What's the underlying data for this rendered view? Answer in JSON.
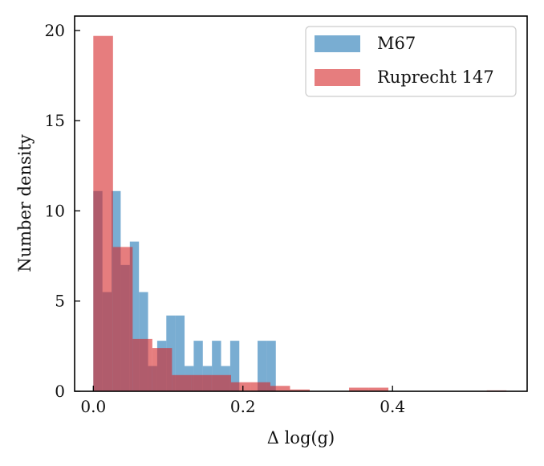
{
  "chart_data": {
    "type": "bar",
    "title": "",
    "xlabel": "Δ log(g)",
    "ylabel": "Number density",
    "xlim": [
      -0.025,
      0.58
    ],
    "ylim": [
      0,
      20.8
    ],
    "xticks": [
      0.0,
      0.2,
      0.4
    ],
    "xtick_labels": [
      "0.0",
      "0.2",
      "0.4"
    ],
    "yticks": [
      0,
      5,
      10,
      15,
      20
    ],
    "ytick_labels": [
      "0",
      "5",
      "10",
      "15",
      "20"
    ],
    "grid": false,
    "legend_position": "top-right",
    "series": [
      {
        "name": "M67",
        "color": "#1f77b4",
        "bin_width": 0.0122,
        "bins_left": [
          0.0,
          0.0122,
          0.0244,
          0.0366,
          0.0488,
          0.061,
          0.0732,
          0.0854,
          0.0976,
          0.1098,
          0.122,
          0.1342,
          0.1464,
          0.1586,
          0.1708,
          0.183,
          0.1952,
          0.2074,
          0.2196,
          0.2318,
          0.244,
          0.2562
        ],
        "values": [
          11.1,
          5.5,
          11.1,
          7.0,
          8.3,
          5.5,
          1.4,
          2.8,
          4.2,
          4.2,
          1.4,
          2.8,
          1.4,
          2.8,
          1.4,
          2.8,
          0.0,
          0.0,
          2.8,
          2.8,
          0.0,
          0.0
        ]
      },
      {
        "name": "Ruprecht 147",
        "color": "#d62728",
        "bin_width": 0.0263,
        "bins_left": [
          0.0,
          0.0263,
          0.0526,
          0.0789,
          0.1052,
          0.1315,
          0.1578,
          0.1841,
          0.2104,
          0.2367,
          0.263,
          0.2893,
          0.3156,
          0.3419,
          0.3682,
          0.3945,
          0.4208,
          0.4471,
          0.4734,
          0.4997,
          0.526
        ],
        "values": [
          19.7,
          8.0,
          2.9,
          2.4,
          0.9,
          0.9,
          0.9,
          0.5,
          0.5,
          0.3,
          0.1,
          0.0,
          0.0,
          0.2,
          0.2,
          0.0,
          0.0,
          0.0,
          0.0,
          0.0,
          0.05
        ]
      }
    ]
  }
}
